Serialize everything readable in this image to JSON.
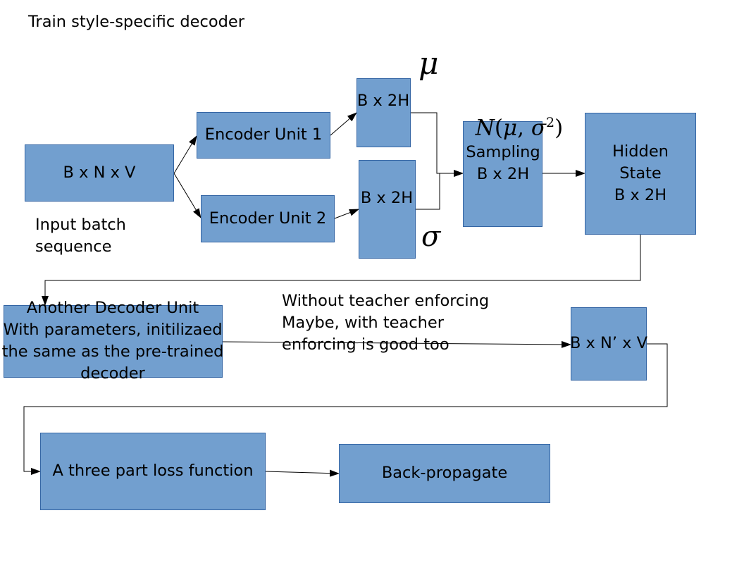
{
  "title": "Train style-specific decoder",
  "boxes": {
    "input": "B x N x V",
    "encoder1": "Encoder Unit 1",
    "encoder2": "Encoder Unit 2",
    "mu_out": "B x 2H",
    "sigma_out": "B x 2H",
    "sampling": "Sampling\nB x 2H",
    "hidden": "Hidden\nState\nB x 2H",
    "decoder": "Another Decoder Unit\nWith parameters, initilizaed\nthe same as the pre-trained\ndecoder",
    "output": "B x N’ x V",
    "loss": "A three part loss function",
    "backprop": "Back-propagate"
  },
  "annotations": {
    "input_caption": "Input batch\nsequence",
    "teacher_note": "Without teacher enforcing\nMaybe, with teacher\nenforcing is good too",
    "mu_symbol": "μ",
    "sigma_symbol": "σ",
    "normal_N": "N",
    "normal_open": "(",
    "normal_mu": "μ",
    "normal_comma": ", ",
    "normal_sigma": "σ",
    "normal_exp": "2",
    "normal_close": ")"
  },
  "colors": {
    "box_fill": "#729fcf",
    "box_border": "#3465a4",
    "connector": "#000000"
  }
}
